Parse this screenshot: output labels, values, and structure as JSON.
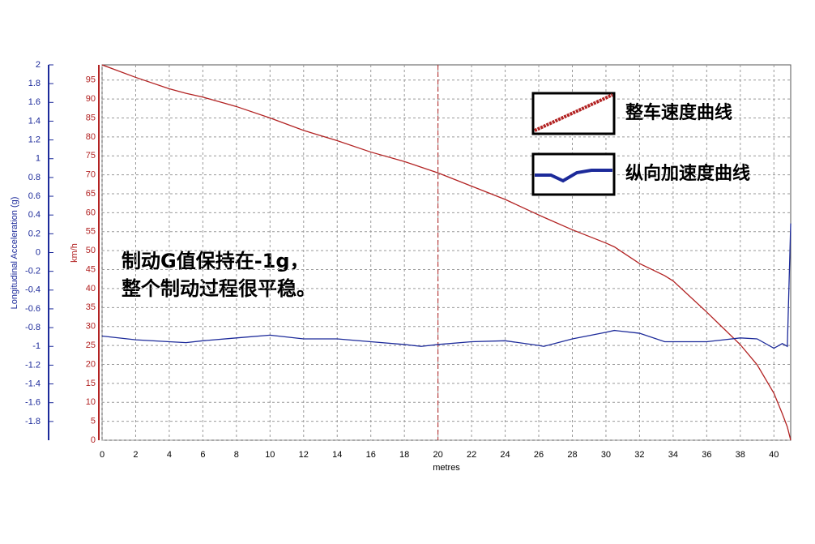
{
  "chart_data": {
    "type": "line",
    "x_label": "metres",
    "y_label": "Longitudinal Acceleration (g)",
    "y2_label": "km/h",
    "annotation": [
      "制动G值保持在-1g，",
      "整个制动过程很平稳。"
    ],
    "x": [
      0,
      2,
      4,
      5,
      6,
      8,
      10,
      12,
      14,
      16,
      18,
      19,
      20,
      22,
      24,
      26,
      26.3,
      28,
      30,
      30.5,
      32,
      33.5,
      34,
      36,
      38,
      39,
      40,
      40.5,
      40.8,
      41
    ],
    "series": [
      {
        "name": "整车速度曲线",
        "color": "#b22222",
        "axis": "y2",
        "values": [
          99,
          95.7,
          92.7,
          91.5,
          90.5,
          88,
          85,
          81.7,
          79,
          76,
          73.5,
          72,
          70.5,
          67,
          63.5,
          59.4,
          58.8,
          55.5,
          52,
          51,
          46.6,
          43.4,
          42,
          33.8,
          25.2,
          19.9,
          12.4,
          7,
          3.5,
          0
        ]
      },
      {
        "name": "纵向加速度曲线",
        "color": "#1c2a9a",
        "axis": "y",
        "values": [
          -0.89,
          -0.93,
          -0.95,
          -0.96,
          -0.94,
          -0.91,
          -0.88,
          -0.92,
          -0.92,
          -0.95,
          -0.98,
          -1.0,
          -0.98,
          -0.95,
          -0.94,
          -0.99,
          -1.0,
          -0.92,
          -0.85,
          -0.83,
          -0.86,
          -0.95,
          -0.95,
          -0.95,
          -0.91,
          -0.92,
          -1.02,
          -0.97,
          -1.0,
          0.31
        ]
      }
    ],
    "xlim": [
      0,
      41
    ],
    "xticks": [
      0,
      2,
      4,
      6,
      8,
      10,
      12,
      14,
      16,
      18,
      20,
      22,
      24,
      26,
      28,
      30,
      32,
      34,
      36,
      38,
      40
    ],
    "ylim": [
      -2,
      2
    ],
    "yticks": [
      2,
      1.8,
      1.6,
      1.4,
      1.2,
      1,
      0.8,
      0.6,
      0.4,
      0.2,
      0,
      -0.2,
      -0.4,
      -0.6,
      -0.8,
      -1,
      -1.2,
      -1.4,
      -1.6,
      -1.8
    ],
    "y2lim": [
      0,
      99
    ],
    "y2ticks": [
      95,
      90,
      85,
      80,
      75,
      70,
      65,
      60,
      55,
      50,
      45,
      40,
      35,
      30,
      25,
      20,
      15,
      10,
      5,
      0
    ],
    "reference_line_x": 20,
    "grid": true
  }
}
